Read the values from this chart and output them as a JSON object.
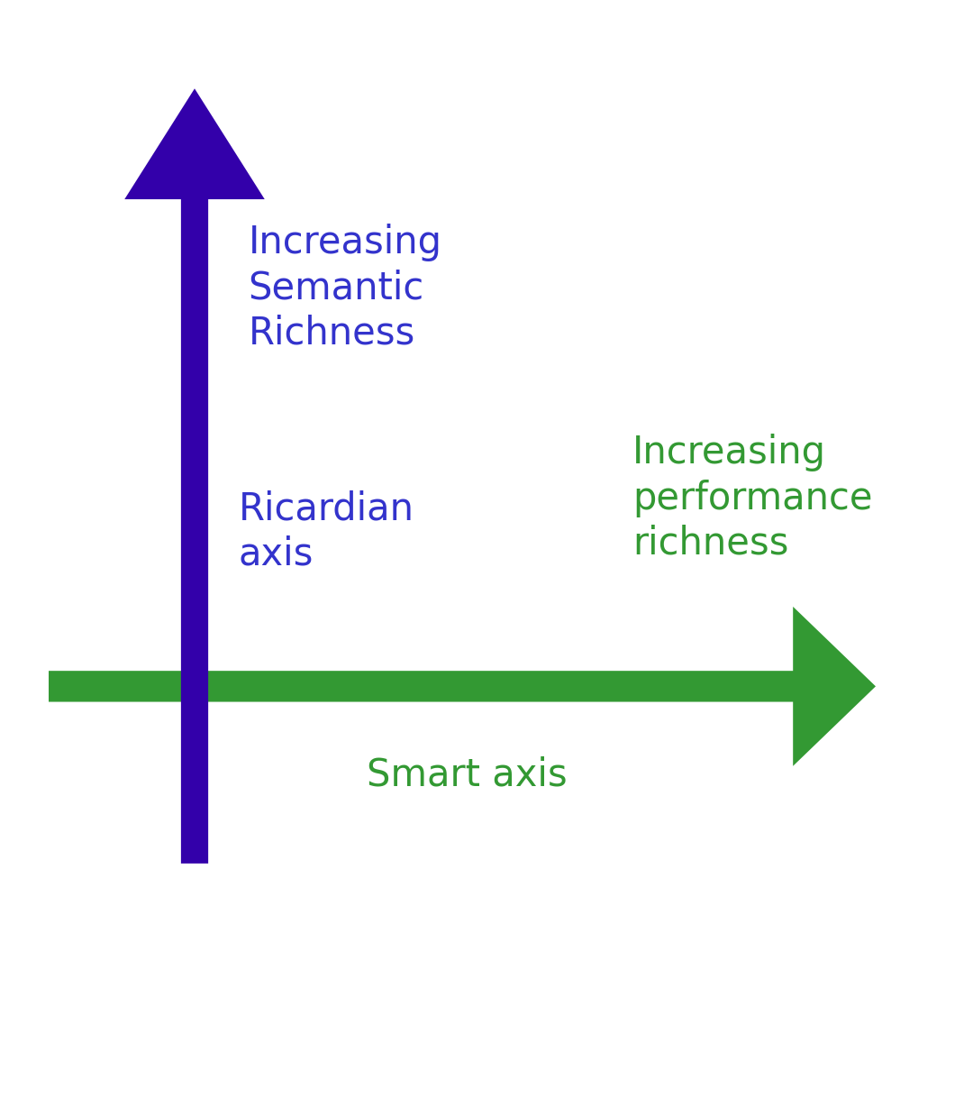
{
  "background_color": "#ffffff",
  "vertical_arrow_color": "#3300aa",
  "horizontal_arrow_color": "#339933",
  "vertical_label_top": "Increasing\nSemantic\nRichness",
  "vertical_label_mid": "Ricardian\naxis",
  "horizontal_label_top": "Increasing\nperformance\nrichness",
  "horizontal_label_bot": "Smart axis",
  "vertical_label_color": "#3333cc",
  "horizontal_label_color": "#339933",
  "label_fontsize": 30,
  "fig_width": 10.8,
  "fig_height": 12.28
}
